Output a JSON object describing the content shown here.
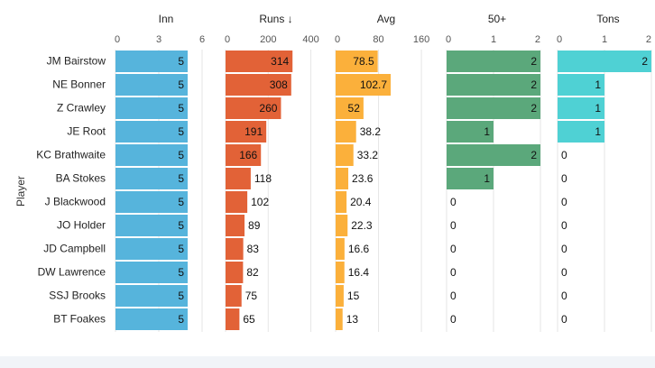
{
  "chart_data": {
    "type": "bar",
    "orientation": "horizontal",
    "y_axis_label": "Player",
    "players": [
      "JM Bairstow",
      "NE Bonner",
      "Z Crawley",
      "JE Root",
      "KC Brathwaite",
      "BA Stokes",
      "J Blackwood",
      "JO Holder",
      "JD Campbell",
      "DW Lawrence",
      "SSJ Brooks",
      "BT Foakes"
    ],
    "panels": [
      {
        "title": "Inn",
        "color": "#56b4dc",
        "domain": [
          0,
          6.5
        ],
        "ticks": [
          0,
          3,
          6
        ],
        "values": [
          5,
          5,
          5,
          5,
          5,
          5,
          5,
          5,
          5,
          5,
          5,
          5
        ],
        "labels": [
          "5",
          "5",
          "5",
          "5",
          "5",
          "5",
          "5",
          "5",
          "5",
          "5",
          "5",
          "5"
        ]
      },
      {
        "title": "Runs ↓",
        "color": "#e26237",
        "domain": [
          0,
          440
        ],
        "ticks": [
          0,
          200,
          400
        ],
        "values": [
          314,
          308,
          260,
          191,
          166,
          118,
          102,
          89,
          83,
          82,
          75,
          65
        ],
        "labels": [
          "314",
          "308",
          "260",
          "191",
          "166",
          "118",
          "102",
          "89",
          "83",
          "82",
          "75",
          "65"
        ]
      },
      {
        "title": "Avg",
        "color": "#fbb03b",
        "domain": [
          0,
          175
        ],
        "ticks": [
          0,
          80,
          160
        ],
        "values": [
          78.5,
          102.7,
          52,
          38.2,
          33.2,
          23.6,
          20.4,
          22.3,
          16.6,
          16.4,
          15,
          13
        ],
        "labels": [
          "78.5",
          "102.7",
          "52",
          "38.2",
          "33.2",
          "23.6",
          "20.4",
          "22.3",
          "16.6",
          "16.4",
          "15",
          "13"
        ]
      },
      {
        "title": "50+",
        "color": "#5ba87b",
        "domain": [
          0,
          2
        ],
        "ticks": [
          0,
          1,
          2
        ],
        "values": [
          2,
          2,
          2,
          1,
          2,
          1,
          0,
          0,
          0,
          0,
          0,
          0
        ],
        "labels": [
          "2",
          "2",
          "2",
          "1",
          "2",
          "1",
          "0",
          "0",
          "0",
          "0",
          "0",
          "0"
        ]
      },
      {
        "title": "Tons",
        "color": "#4fd1d4",
        "domain": [
          0,
          2
        ],
        "ticks": [
          0,
          1,
          2
        ],
        "values": [
          2,
          1,
          1,
          1,
          0,
          0,
          0,
          0,
          0,
          0,
          0,
          0
        ],
        "labels": [
          "2",
          "1",
          "1",
          "1",
          "0",
          "0",
          "0",
          "0",
          "0",
          "0",
          "0",
          "0"
        ]
      }
    ]
  }
}
